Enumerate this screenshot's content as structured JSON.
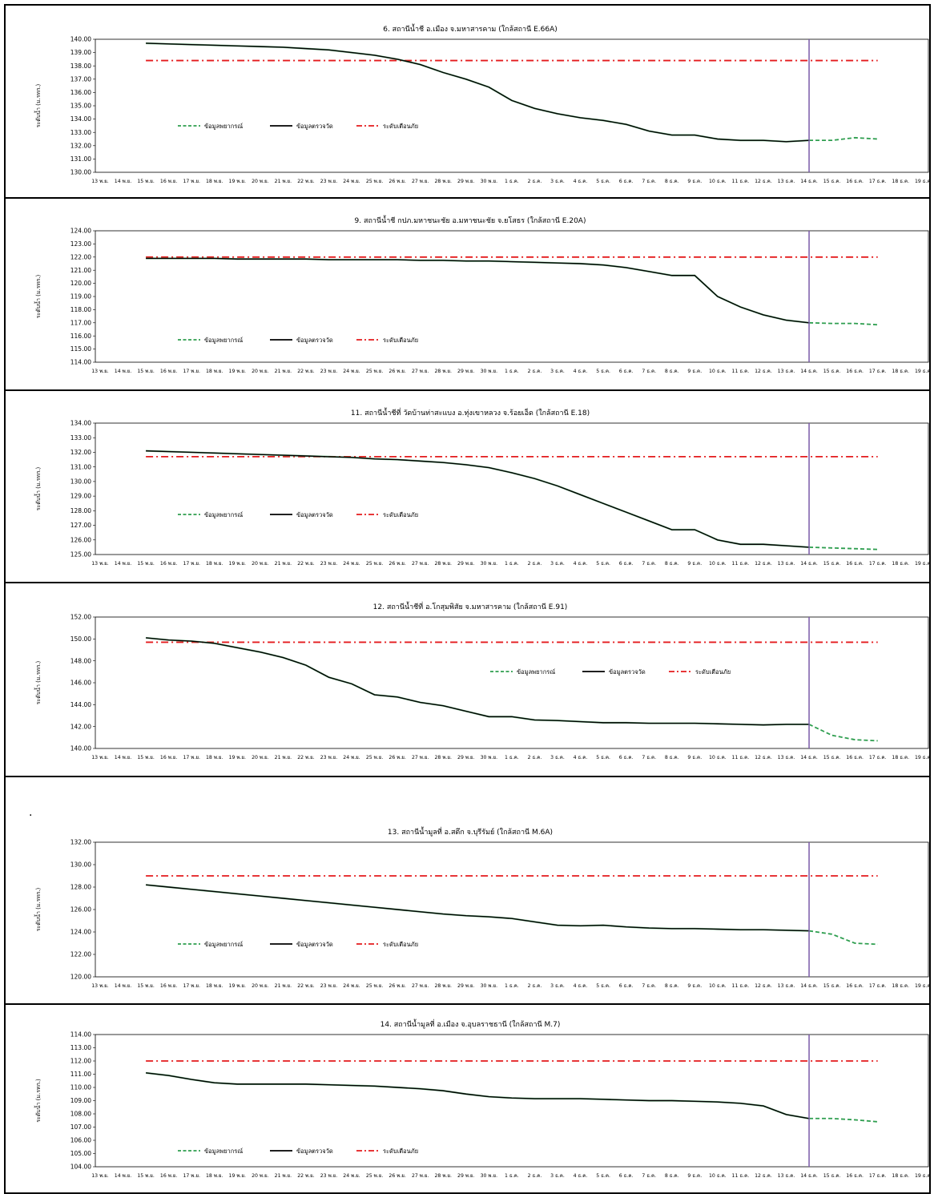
{
  "page_note": ".",
  "axis_ylabel": "ระดับน้ำ (ม.รทก.)",
  "legend": [
    {
      "key": "forecast",
      "label": "ข้อมูลพยากรณ์",
      "color": "#2e9e4f",
      "style": "dashed"
    },
    {
      "key": "observed",
      "label": "ข้อมูลตรวจวัด",
      "color": "#000000",
      "style": "solid"
    },
    {
      "key": "warning",
      "label": "ระดับเตือนภัย",
      "color": "#e41a1c",
      "style": "dashdot"
    }
  ],
  "current_marker": {
    "date": "14 ธ.ค.",
    "color": "#7a5aa8"
  },
  "x_ticks": [
    "13 พ.ย.",
    "14 พ.ย.",
    "15 พ.ย.",
    "16 พ.ย.",
    "17 พ.ย.",
    "18 พ.ย.",
    "19 พ.ย.",
    "20 พ.ย.",
    "21 พ.ย.",
    "22 พ.ย.",
    "23 พ.ย.",
    "24 พ.ย.",
    "25 พ.ย.",
    "26 พ.ย.",
    "27 พ.ย.",
    "28 พ.ย.",
    "29 พ.ย.",
    "30 พ.ย.",
    "1 ธ.ค.",
    "2 ธ.ค.",
    "3 ธ.ค.",
    "4 ธ.ค.",
    "5 ธ.ค.",
    "6 ธ.ค.",
    "7 ธ.ค.",
    "8 ธ.ค.",
    "9 ธ.ค.",
    "10 ธ.ค.",
    "11 ธ.ค.",
    "12 ธ.ค.",
    "13 ธ.ค.",
    "14 ธ.ค.",
    "15 ธ.ค.",
    "16 ธ.ค.",
    "17 ธ.ค.",
    "18 ธ.ค.",
    "19 ธ.ค."
  ],
  "chart_data": [
    {
      "type": "line",
      "title": "6. สถานีน้ำชี อ.เมือง จ.มหาสารคาม (ใกล้สถานี E.66A)",
      "ylabel": "ระดับน้ำ (ม.รทก.)",
      "ylim": [
        130,
        140
      ],
      "y_step": 1,
      "legend_position": "left",
      "x": [
        "15 พ.ย.",
        "16 พ.ย.",
        "17 พ.ย.",
        "18 พ.ย.",
        "19 พ.ย.",
        "20 พ.ย.",
        "21 พ.ย.",
        "22 พ.ย.",
        "23 พ.ย.",
        "24 พ.ย.",
        "25 พ.ย.",
        "26 พ.ย.",
        "27 พ.ย.",
        "28 พ.ย.",
        "29 พ.ย.",
        "30 พ.ย.",
        "1 ธ.ค.",
        "2 ธ.ค.",
        "3 ธ.ค.",
        "4 ธ.ค.",
        "5 ธ.ค.",
        "6 ธ.ค.",
        "7 ธ.ค.",
        "8 ธ.ค.",
        "9 ธ.ค.",
        "10 ธ.ค.",
        "11 ธ.ค.",
        "12 ธ.ค.",
        "13 ธ.ค.",
        "14 ธ.ค."
      ],
      "observed": [
        139.7,
        139.65,
        139.6,
        139.55,
        139.5,
        139.45,
        139.4,
        139.3,
        139.2,
        139.0,
        138.8,
        138.5,
        138.1,
        137.5,
        137.0,
        136.4,
        135.4,
        134.8,
        134.4,
        134.1,
        133.9,
        133.6,
        133.1,
        132.8,
        132.8,
        132.5,
        132.4,
        132.4,
        132.3,
        132.4
      ],
      "forecast_x": [
        "14 ธ.ค.",
        "15 ธ.ค.",
        "16 ธ.ค.",
        "17 ธ.ค."
      ],
      "forecast": [
        132.4,
        132.4,
        132.6,
        132.5
      ],
      "warning_level": 138.4
    },
    {
      "type": "line",
      "title": "9. สถานีน้ำชี กปภ.มหาชนะชัย อ.มหาชนะชัย จ.ยโสธร (ใกล้สถานี E.20A)",
      "ylabel": "ระดับน้ำ (ม.รทก.)",
      "ylim": [
        114,
        124
      ],
      "y_step": 1,
      "legend_position": "left",
      "x": [
        "15 พ.ย.",
        "16 พ.ย.",
        "17 พ.ย.",
        "18 พ.ย.",
        "19 พ.ย.",
        "20 พ.ย.",
        "21 พ.ย.",
        "22 พ.ย.",
        "23 พ.ย.",
        "24 พ.ย.",
        "25 พ.ย.",
        "26 พ.ย.",
        "27 พ.ย.",
        "28 พ.ย.",
        "29 พ.ย.",
        "30 พ.ย.",
        "1 ธ.ค.",
        "2 ธ.ค.",
        "3 ธ.ค.",
        "4 ธ.ค.",
        "5 ธ.ค.",
        "6 ธ.ค.",
        "7 ธ.ค.",
        "8 ธ.ค.",
        "9 ธ.ค.",
        "10 ธ.ค.",
        "11 ธ.ค.",
        "12 ธ.ค.",
        "13 ธ.ค.",
        "14 ธ.ค."
      ],
      "observed": [
        121.9,
        121.9,
        121.9,
        121.9,
        121.85,
        121.85,
        121.85,
        121.85,
        121.8,
        121.8,
        121.8,
        121.8,
        121.75,
        121.75,
        121.7,
        121.7,
        121.65,
        121.6,
        121.55,
        121.5,
        121.4,
        121.2,
        120.9,
        120.6,
        120.6,
        119.0,
        118.2,
        117.6,
        117.2,
        117.0
      ],
      "forecast_x": [
        "14 ธ.ค.",
        "15 ธ.ค.",
        "16 ธ.ค.",
        "17 ธ.ค."
      ],
      "forecast": [
        117.0,
        116.95,
        116.95,
        116.85
      ],
      "warning_level": 122.0
    },
    {
      "type": "line",
      "title": "11. สถานีน้ำชีที่ วัดบ้านท่าสะแบง อ.ทุ่งเขาหลวง จ.ร้อยเอ็ด (ใกล้สถานี E.18)",
      "ylabel": "ระดับน้ำ (ม.รทก.)",
      "ylim": [
        125,
        134
      ],
      "y_step": 1,
      "legend_position": "left",
      "x": [
        "15 พ.ย.",
        "16 พ.ย.",
        "17 พ.ย.",
        "18 พ.ย.",
        "19 พ.ย.",
        "20 พ.ย.",
        "21 พ.ย.",
        "22 พ.ย.",
        "23 พ.ย.",
        "24 พ.ย.",
        "25 พ.ย.",
        "26 พ.ย.",
        "27 พ.ย.",
        "28 พ.ย.",
        "29 พ.ย.",
        "30 พ.ย.",
        "1 ธ.ค.",
        "2 ธ.ค.",
        "3 ธ.ค.",
        "4 ธ.ค.",
        "5 ธ.ค.",
        "6 ธ.ค.",
        "7 ธ.ค.",
        "8 ธ.ค.",
        "9 ธ.ค.",
        "10 ธ.ค.",
        "11 ธ.ค.",
        "12 ธ.ค.",
        "13 ธ.ค.",
        "14 ธ.ค."
      ],
      "observed": [
        132.1,
        132.05,
        132.0,
        131.95,
        131.9,
        131.85,
        131.8,
        131.75,
        131.7,
        131.65,
        131.55,
        131.5,
        131.4,
        131.3,
        131.15,
        130.95,
        130.6,
        130.2,
        129.7,
        129.1,
        128.5,
        127.9,
        127.3,
        126.7,
        126.7,
        126.0,
        125.7,
        125.7,
        125.6,
        125.5
      ],
      "forecast_x": [
        "14 ธ.ค.",
        "15 ธ.ค.",
        "16 ธ.ค.",
        "17 ธ.ค."
      ],
      "forecast": [
        125.5,
        125.45,
        125.4,
        125.35
      ],
      "warning_level": 131.7
    },
    {
      "type": "line",
      "title": "12. สถานีน้ำชีที่ อ.โกสุมพิสัย จ.มหาสารคาม (ใกล้สถานี E.91)",
      "ylabel": "ระดับน้ำ (ม.รทก.)",
      "ylim": [
        140,
        152
      ],
      "y_step": 2,
      "legend_position": "right",
      "x": [
        "15 พ.ย.",
        "16 พ.ย.",
        "17 พ.ย.",
        "18 พ.ย.",
        "19 พ.ย.",
        "20 พ.ย.",
        "21 พ.ย.",
        "22 พ.ย.",
        "23 พ.ย.",
        "24 พ.ย.",
        "25 พ.ย.",
        "26 พ.ย.",
        "27 พ.ย.",
        "28 พ.ย.",
        "29 พ.ย.",
        "30 พ.ย.",
        "1 ธ.ค.",
        "2 ธ.ค.",
        "3 ธ.ค.",
        "4 ธ.ค.",
        "5 ธ.ค.",
        "6 ธ.ค.",
        "7 ธ.ค.",
        "8 ธ.ค.",
        "9 ธ.ค.",
        "10 ธ.ค.",
        "11 ธ.ค.",
        "12 ธ.ค.",
        "13 ธ.ค.",
        "14 ธ.ค."
      ],
      "observed": [
        150.1,
        149.9,
        149.8,
        149.6,
        149.2,
        148.8,
        148.3,
        147.6,
        146.5,
        145.9,
        144.9,
        144.7,
        144.2,
        143.9,
        143.4,
        142.9,
        142.9,
        142.6,
        142.55,
        142.45,
        142.35,
        142.35,
        142.3,
        142.3,
        142.3,
        142.25,
        142.2,
        142.15,
        142.2,
        142.2
      ],
      "forecast_x": [
        "14 ธ.ค.",
        "15 ธ.ค.",
        "16 ธ.ค.",
        "17 ธ.ค."
      ],
      "forecast": [
        142.2,
        141.2,
        140.8,
        140.7
      ],
      "warning_level": 149.7
    },
    {
      "type": "line",
      "title": "13. สถานีน้ำมูลที่ อ.สตึก จ.บุรีรัมย์ (ใกล้สถานี M.6A)",
      "ylabel": "ระดับน้ำ (ม.รทก.)",
      "ylim": [
        120,
        132
      ],
      "y_step": 2,
      "legend_position": "left",
      "x": [
        "15 พ.ย.",
        "16 พ.ย.",
        "17 พ.ย.",
        "18 พ.ย.",
        "19 พ.ย.",
        "20 พ.ย.",
        "21 พ.ย.",
        "22 พ.ย.",
        "23 พ.ย.",
        "24 พ.ย.",
        "25 พ.ย.",
        "26 พ.ย.",
        "27 พ.ย.",
        "28 พ.ย.",
        "29 พ.ย.",
        "30 พ.ย.",
        "1 ธ.ค.",
        "2 ธ.ค.",
        "3 ธ.ค.",
        "4 ธ.ค.",
        "5 ธ.ค.",
        "6 ธ.ค.",
        "7 ธ.ค.",
        "8 ธ.ค.",
        "9 ธ.ค.",
        "10 ธ.ค.",
        "11 ธ.ค.",
        "12 ธ.ค.",
        "13 ธ.ค.",
        "14 ธ.ค."
      ],
      "observed": [
        128.2,
        128.0,
        127.8,
        127.6,
        127.4,
        127.2,
        127.0,
        126.8,
        126.6,
        126.4,
        126.2,
        126.0,
        125.8,
        125.6,
        125.45,
        125.35,
        125.2,
        124.9,
        124.6,
        124.55,
        124.6,
        124.45,
        124.35,
        124.3,
        124.3,
        124.25,
        124.2,
        124.2,
        124.15,
        124.1
      ],
      "forecast_x": [
        "14 ธ.ค.",
        "15 ธ.ค.",
        "16 ธ.ค.",
        "17 ธ.ค."
      ],
      "forecast": [
        124.1,
        123.8,
        123.0,
        122.9
      ],
      "warning_level": 129.0
    },
    {
      "type": "line",
      "title": "14. สถานีน้ำมูลที่ อ.เมือง จ.อุบลราชธานี (ใกล้สถานี M.7)",
      "ylabel": "ระดับน้ำ (ม.รทก.)",
      "ylim": [
        104,
        114
      ],
      "y_step": 1,
      "legend_position": "left",
      "x": [
        "15 พ.ย.",
        "16 พ.ย.",
        "17 พ.ย.",
        "18 พ.ย.",
        "19 พ.ย.",
        "20 พ.ย.",
        "21 พ.ย.",
        "22 พ.ย.",
        "23 พ.ย.",
        "24 พ.ย.",
        "25 พ.ย.",
        "26 พ.ย.",
        "27 พ.ย.",
        "28 พ.ย.",
        "29 พ.ย.",
        "30 พ.ย.",
        "1 ธ.ค.",
        "2 ธ.ค.",
        "3 ธ.ค.",
        "4 ธ.ค.",
        "5 ธ.ค.",
        "6 ธ.ค.",
        "7 ธ.ค.",
        "8 ธ.ค.",
        "9 ธ.ค.",
        "10 ธ.ค.",
        "11 ธ.ค.",
        "12 ธ.ค.",
        "13 ธ.ค.",
        "14 ธ.ค."
      ],
      "observed": [
        111.1,
        110.9,
        110.6,
        110.35,
        110.25,
        110.25,
        110.25,
        110.25,
        110.2,
        110.15,
        110.1,
        110.0,
        109.9,
        109.75,
        109.5,
        109.3,
        109.2,
        109.15,
        109.15,
        109.15,
        109.1,
        109.05,
        109.0,
        109.0,
        108.95,
        108.9,
        108.8,
        108.6,
        107.95,
        107.65
      ],
      "forecast_x": [
        "14 ธ.ค.",
        "15 ธ.ค.",
        "16 ธ.ค.",
        "17 ธ.ค."
      ],
      "forecast": [
        107.65,
        107.65,
        107.55,
        107.4
      ],
      "warning_level": 112.0
    }
  ]
}
